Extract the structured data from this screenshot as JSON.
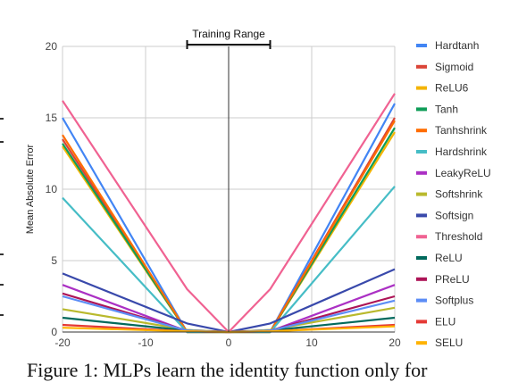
{
  "chart_data": {
    "type": "line",
    "title": "",
    "xlabel": "",
    "ylabel": "Mean Absolute Error",
    "xlim": [
      -20,
      20
    ],
    "ylim": [
      0,
      20
    ],
    "xticks": [
      -20,
      -10,
      0,
      10,
      20
    ],
    "yticks": [
      0,
      5,
      10,
      15,
      20
    ],
    "grid": true,
    "legend": "right",
    "annotation": {
      "label": "Training Range",
      "x_range": [
        -5,
        5
      ]
    },
    "x": [
      -20,
      -5,
      0,
      5,
      20
    ],
    "series": [
      {
        "name": "Hardtanh",
        "color": "#4285f4",
        "values": [
          15.0,
          0.0,
          0.0,
          0.0,
          16.0
        ]
      },
      {
        "name": "Sigmoid",
        "color": "#db4437",
        "values": [
          13.5,
          0.0,
          0.0,
          0.0,
          15.0
        ]
      },
      {
        "name": "ReLU6",
        "color": "#f4b400",
        "values": [
          13.0,
          0.0,
          0.0,
          0.0,
          14.0
        ]
      },
      {
        "name": "Tanh",
        "color": "#0f9d58",
        "values": [
          13.2,
          0.0,
          0.0,
          0.0,
          14.3
        ]
      },
      {
        "name": "Tanhshrink",
        "color": "#ff6d00",
        "values": [
          13.8,
          0.0,
          0.0,
          0.0,
          14.8
        ]
      },
      {
        "name": "Hardshrink",
        "color": "#46bdc6",
        "values": [
          9.4,
          0.0,
          0.0,
          0.0,
          10.2
        ]
      },
      {
        "name": "LeakyReLU",
        "color": "#ab30c4",
        "values": [
          3.3,
          0.05,
          0.0,
          0.05,
          3.3
        ]
      },
      {
        "name": "Softshrink",
        "color": "#b9b92d",
        "values": [
          1.6,
          0.15,
          0.0,
          0.15,
          1.7
        ]
      },
      {
        "name": "Softsign",
        "color": "#3949ab",
        "values": [
          4.1,
          0.6,
          0.0,
          0.6,
          4.4
        ]
      },
      {
        "name": "Threshold",
        "color": "#f06292",
        "values": [
          16.2,
          3.0,
          0.0,
          3.0,
          16.7
        ]
      },
      {
        "name": "ReLU",
        "color": "#00695c",
        "values": [
          1.0,
          0.1,
          0.0,
          0.1,
          1.0
        ]
      },
      {
        "name": "PReLU",
        "color": "#ad1457",
        "values": [
          2.7,
          0.1,
          0.0,
          0.1,
          2.5
        ]
      },
      {
        "name": "Softplus",
        "color": "#5c8df6",
        "values": [
          2.5,
          0.1,
          0.0,
          0.1,
          2.2
        ]
      },
      {
        "name": "ELU",
        "color": "#e53935",
        "values": [
          0.5,
          0.05,
          0.0,
          0.05,
          0.5
        ]
      },
      {
        "name": "SELU",
        "color": "#ffb300",
        "values": [
          0.3,
          0.05,
          0.0,
          0.05,
          0.4
        ]
      }
    ]
  },
  "caption": "Figure 1: MLPs learn the identity function only for"
}
